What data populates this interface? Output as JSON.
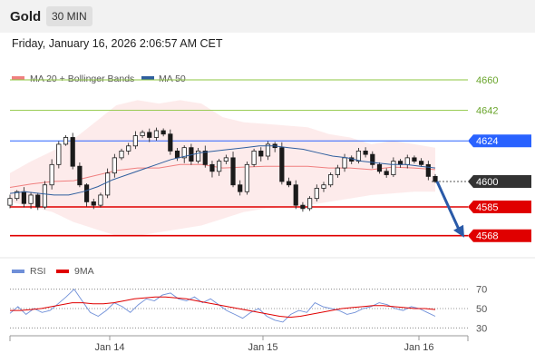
{
  "header": {
    "symbol": "Gold",
    "timeframe": "30 MIN",
    "timestamp": "Friday, January 16, 2026 2:06:57 AM CET"
  },
  "colors": {
    "bollinger": "#f08080",
    "ma50": "#2f5f9e",
    "resistance": "#8cc63f",
    "blue_level": "#2962ff",
    "support": "#e00000",
    "current": "#333333",
    "candle": "#1a1a1a",
    "rsi": "#6f8fd8",
    "rsi_ma": "#e00000"
  },
  "chart_data": [
    {
      "type": "candlestick",
      "legend": [
        "MA 20 + Bollinger Bands",
        "MA 50"
      ],
      "ylim": [
        4555,
        4675
      ],
      "x_ticks": [
        "Jan 14",
        "Jan 15",
        "Jan 16"
      ],
      "levels": [
        {
          "value": 4660,
          "label": "4660",
          "kind": "resistance"
        },
        {
          "value": 4642,
          "label": "4642",
          "kind": "resistance"
        },
        {
          "value": 4624,
          "label": "4624",
          "kind": "blue"
        },
        {
          "value": 4600,
          "label": "4600",
          "kind": "current"
        },
        {
          "value": 4585,
          "label": "4585",
          "kind": "support"
        },
        {
          "value": 4568,
          "label": "4568",
          "kind": "support"
        }
      ],
      "price_path": [
        4586,
        4590,
        4594,
        4587,
        4592,
        4585,
        4598,
        4610,
        4622,
        4626,
        4609,
        4598,
        4588,
        4586,
        4592,
        4605,
        4614,
        4618,
        4621,
        4627,
        4629,
        4626,
        4630,
        4628,
        4618,
        4614,
        4620,
        4612,
        4618,
        4610,
        4606,
        4612,
        4614,
        4598,
        4594,
        4610,
        4618,
        4615,
        4622,
        4620,
        4600,
        4598,
        4586,
        4584,
        4590,
        4596,
        4598,
        4604,
        4608,
        4614,
        4612,
        4618,
        4616,
        4610,
        4606,
        4604,
        4612,
        4610,
        4614,
        4612,
        4610,
        4603,
        4600
      ],
      "ma50_path": [
        4593,
        4594,
        4593,
        4592,
        4592,
        4594,
        4597,
        4601,
        4604,
        4607,
        4610,
        4613,
        4615,
        4617,
        4618,
        4619,
        4620,
        4621,
        4621,
        4620,
        4619,
        4617,
        4615,
        4614,
        4612,
        4611,
        4610,
        4610,
        4609,
        4608
      ],
      "bb_upper_path": [
        4605,
        4612,
        4618,
        4625,
        4635,
        4645,
        4648,
        4646,
        4648,
        4646,
        4638,
        4635,
        4634,
        4633,
        4632,
        4628,
        4626,
        4622,
        4624,
        4622,
        4620
      ],
      "bb_lower_path": [
        4588,
        4585,
        4582,
        4576,
        4572,
        4568,
        4568,
        4570,
        4572,
        4574,
        4578,
        4582,
        4584,
        4585,
        4586,
        4588,
        4590,
        4592,
        4593,
        4594,
        4594
      ],
      "forecast": {
        "from": 4600,
        "to": 4568
      }
    },
    {
      "type": "line",
      "legend": [
        "RSI",
        "9MA"
      ],
      "ylim": [
        20,
        80
      ],
      "y_ticks": [
        70,
        50,
        30
      ],
      "rsi_path": [
        45,
        52,
        44,
        50,
        46,
        48,
        55,
        62,
        70,
        58,
        46,
        42,
        48,
        56,
        52,
        46,
        54,
        60,
        58,
        64,
        66,
        60,
        58,
        62,
        56,
        60,
        54,
        48,
        44,
        40,
        46,
        50,
        42,
        38,
        36,
        44,
        48,
        46,
        56,
        52,
        50,
        48,
        44,
        46,
        50,
        52,
        56,
        54,
        50,
        48,
        52,
        50,
        46,
        42
      ],
      "ma_path": [
        48,
        48,
        49,
        50,
        52,
        54,
        56,
        56,
        55,
        55,
        56,
        58,
        60,
        61,
        62,
        62,
        61,
        60,
        58,
        56,
        54,
        52,
        50,
        48,
        46,
        44,
        42,
        41,
        42,
        44,
        46,
        48,
        50,
        51,
        52,
        53,
        53,
        52,
        51,
        50,
        50,
        49
      ]
    }
  ]
}
